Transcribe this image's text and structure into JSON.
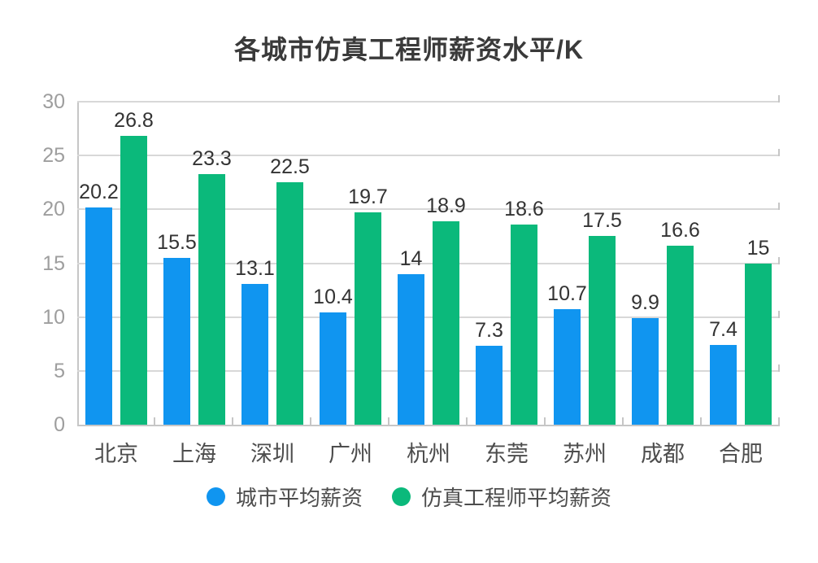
{
  "title": "各城市仿真工程师薪资水平/K",
  "chart_data": {
    "type": "bar",
    "title": "各城市仿真工程师薪资水平/K",
    "categories": [
      "北京",
      "上海",
      "深圳",
      "广州",
      "杭州",
      "东莞",
      "苏州",
      "成都",
      "合肥"
    ],
    "series": [
      {
        "name": "城市平均薪资",
        "color": "#1095f0",
        "values": [
          20.2,
          15.5,
          13.1,
          10.4,
          14,
          7.3,
          10.7,
          9.9,
          7.4
        ]
      },
      {
        "name": "仿真工程师平均薪资",
        "color": "#0bb97b",
        "values": [
          26.8,
          23.3,
          22.5,
          19.7,
          18.9,
          18.6,
          17.5,
          16.6,
          15
        ]
      }
    ],
    "xlabel": "",
    "ylabel": "",
    "ylim": [
      0,
      30
    ],
    "yticks": [
      0,
      5,
      10,
      15,
      20,
      25,
      30
    ],
    "grid": true,
    "value_labels": true,
    "legend_position": "bottom"
  },
  "style": {
    "background": "#ffffff",
    "title_color": "#3a3a3a",
    "grid_color": "#d8d8d8",
    "axis_color": "#c6c6c6",
    "ytick_label_color": "#9e9e9e",
    "xtick_label_color": "#4d4d4d",
    "value_label_color": "#333333",
    "bar_blue": "#1095f0",
    "bar_green": "#0bb97b"
  }
}
